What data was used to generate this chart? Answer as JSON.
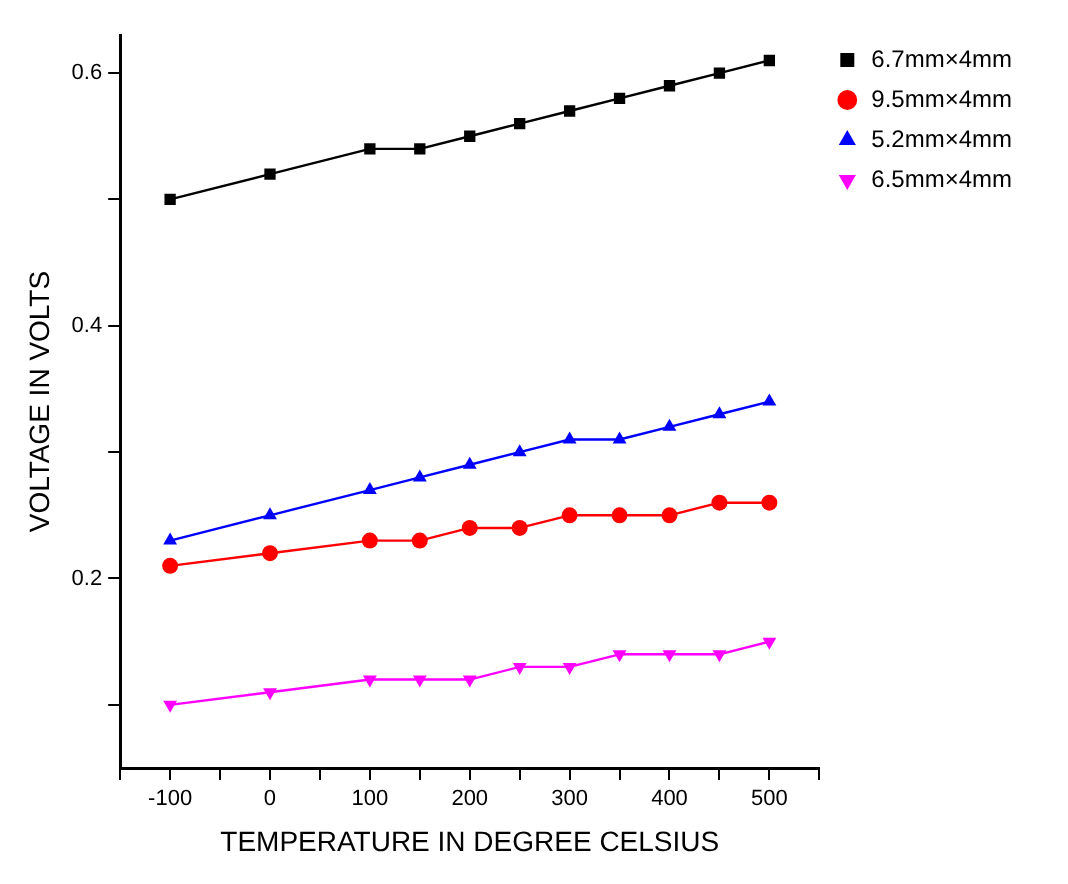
{
  "chart_data": {
    "type": "line",
    "xlabel": "TEMPERATURE IN DEGREE CELSIUS",
    "ylabel": "VOLTAGE IN VOLTS",
    "x": [
      -100,
      0,
      100,
      150,
      200,
      250,
      300,
      350,
      400,
      450,
      500
    ],
    "series": [
      {
        "name": "6.7mm×4mm",
        "color": "#000000",
        "marker": "square",
        "values": [
          0.5,
          0.52,
          0.54,
          0.54,
          0.55,
          0.56,
          0.57,
          0.58,
          0.59,
          0.6,
          0.61
        ]
      },
      {
        "name": "9.5mm×4mm",
        "color": "#ff0000",
        "marker": "circle",
        "values": [
          0.21,
          0.22,
          0.23,
          0.23,
          0.24,
          0.24,
          0.25,
          0.25,
          0.25,
          0.26,
          0.26
        ]
      },
      {
        "name": "5.2mm×4mm",
        "color": "#0000ff",
        "marker": "triangle",
        "values": [
          0.23,
          0.25,
          0.27,
          0.28,
          0.29,
          0.3,
          0.31,
          0.31,
          0.32,
          0.33,
          0.34
        ]
      },
      {
        "name": "6.5mm×4mm",
        "color": "#ff00ff",
        "marker": "triangle-down",
        "values": [
          0.1,
          0.11,
          0.12,
          0.12,
          0.12,
          0.13,
          0.13,
          0.14,
          0.14,
          0.14,
          0.15
        ]
      }
    ],
    "xlim": [
      -150,
      550
    ],
    "xticks": [
      {
        "value": -150,
        "label": null
      },
      -100,
      {
        "value": -50,
        "label": null
      },
      0,
      {
        "value": 50,
        "label": null
      },
      100,
      {
        "value": 150,
        "label": null
      },
      200,
      {
        "value": 250,
        "label": null
      },
      300,
      {
        "value": 350,
        "label": null
      },
      400,
      {
        "value": 450,
        "label": null
      },
      500,
      {
        "value": 550,
        "label": null
      }
    ],
    "ylim": [
      0.05,
      0.63
    ],
    "yticks": [
      {
        "value": 0.1,
        "label": null
      },
      0.2,
      {
        "value": 0.3,
        "label": null
      },
      0.4,
      {
        "value": 0.5,
        "label": null
      },
      0.6
    ],
    "legend": "top right",
    "grid": false,
    "line_style": "solid"
  }
}
